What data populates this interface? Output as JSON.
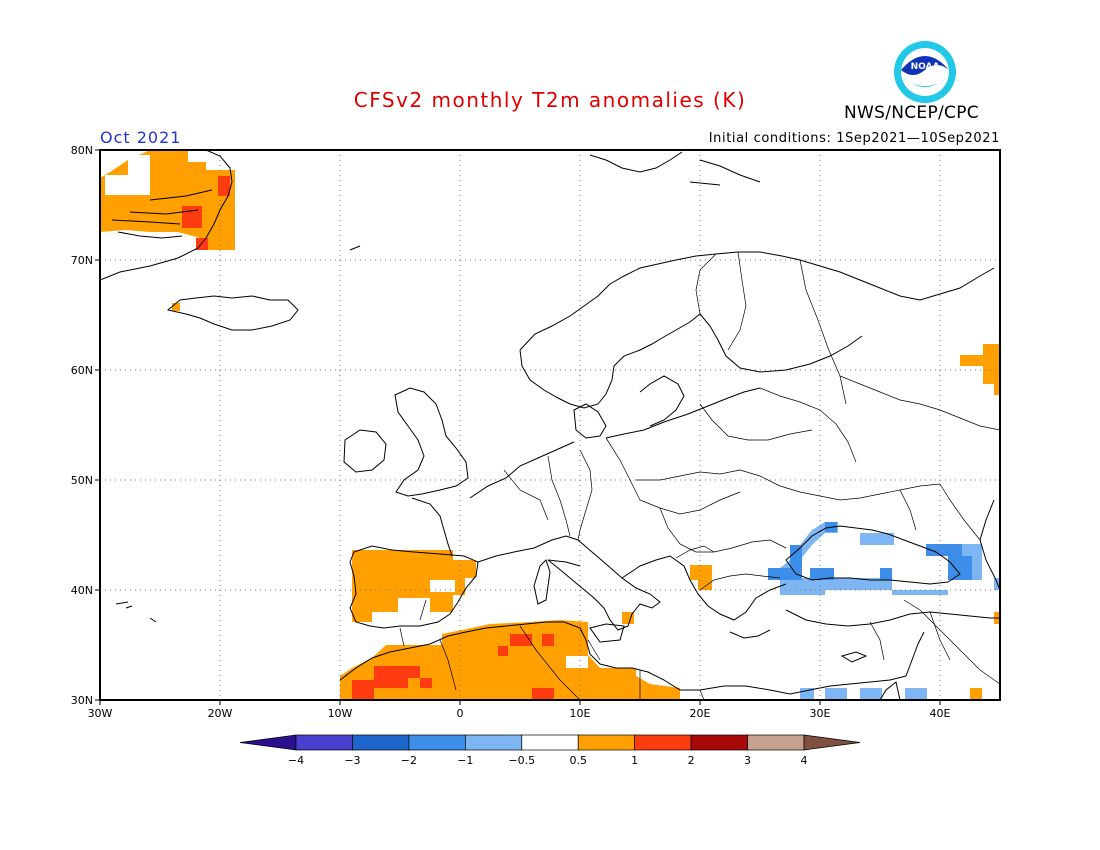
{
  "title": "CFSv2 monthly T2m anomalies (K)",
  "organization": "NWS/NCEP/CPC",
  "logo_text": "NOAA",
  "target_month": "Oct 2021",
  "initial_conditions": "Initial conditions: 1Sep2021—10Sep2021",
  "map": {
    "lon_range": [
      -30,
      45
    ],
    "lat_range": [
      30,
      80
    ],
    "lat_labels": [
      "80N",
      "70N",
      "60N",
      "50N",
      "40N",
      "30N"
    ],
    "lon_labels": [
      "30W",
      "20W",
      "10W",
      "0",
      "10E",
      "20E",
      "30E",
      "40E"
    ],
    "gridlines": "dotted"
  },
  "colorbar": {
    "labels": [
      "−4",
      "−3",
      "−2",
      "−1",
      "−0.5",
      "0.5",
      "1",
      "2",
      "3",
      "4"
    ],
    "colors": [
      "#2a0f8f",
      "#4b3fcf",
      "#1f66cc",
      "#3d8ee8",
      "#7db6f2",
      "#ffffff",
      "#ffa000",
      "#ff3c0f",
      "#a80a0a",
      "#c7a08f",
      "#7f4f3f"
    ]
  },
  "colors": {
    "title": "#e00000",
    "month": "#2233cc",
    "warm_05_1": "#ffa000",
    "warm_1_2": "#ff3c0f",
    "cool_m1_m05": "#7db6f2",
    "cool_m2_m1": "#3d8ee8"
  }
}
